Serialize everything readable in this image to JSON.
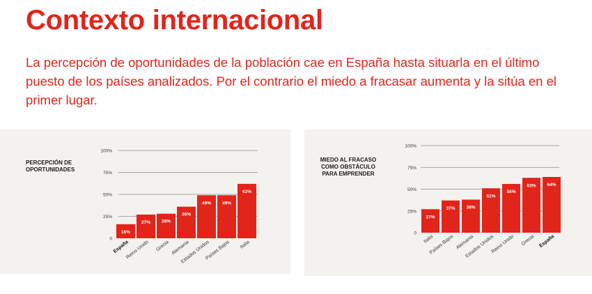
{
  "title": "Contexto internacional",
  "intro": "La percepción de oportunidades de la población cae en España hasta situarla en el último puesto de los países analizados. Por el contrario el miedo a fracasar aumenta y la sitúa en el primer lugar.",
  "colors": {
    "accent": "#e1251b",
    "bar": "#e1251b",
    "panel": "#f4f2ef"
  },
  "chart_data": [
    {
      "type": "bar",
      "title": "PERCEPCIÓN DE\nOPORTUNIDADES",
      "categories": [
        "España",
        "Reino Unido",
        "Grecia",
        "Alemania",
        "Estados Unidos",
        "Países Bajos",
        "Italia"
      ],
      "values": [
        16,
        27,
        28,
        36,
        49,
        49,
        62
      ],
      "data_labels": [
        "16%",
        "27%",
        "28%",
        "36%",
        "49%",
        "49%",
        "62%"
      ],
      "highlight": "España",
      "ylim": [
        0,
        100
      ],
      "yticks": [
        0,
        25,
        50,
        75,
        100
      ],
      "ytick_labels": [
        "0",
        "25%",
        "50%",
        "75%",
        "100%"
      ],
      "grid": true
    },
    {
      "type": "bar",
      "title": "MIEDO AL FRACASO\nCOMO OBSTÁCULO\nPARA EMPRENDER",
      "categories": [
        "Italia",
        "Países Bajos",
        "Alemania",
        "Estados Unidos",
        "Reino Unido",
        "Grecia",
        "España"
      ],
      "values": [
        27,
        37,
        38,
        51,
        56,
        63,
        64
      ],
      "data_labels": [
        "27%",
        "37%",
        "38%",
        "51%",
        "56%",
        "63%",
        "64%"
      ],
      "highlight": "España",
      "ylim": [
        0,
        100
      ],
      "yticks": [
        0,
        25,
        50,
        75,
        100
      ],
      "ytick_labels": [
        "0",
        "25%",
        "50%",
        "75%",
        "100%"
      ],
      "grid": true
    }
  ]
}
